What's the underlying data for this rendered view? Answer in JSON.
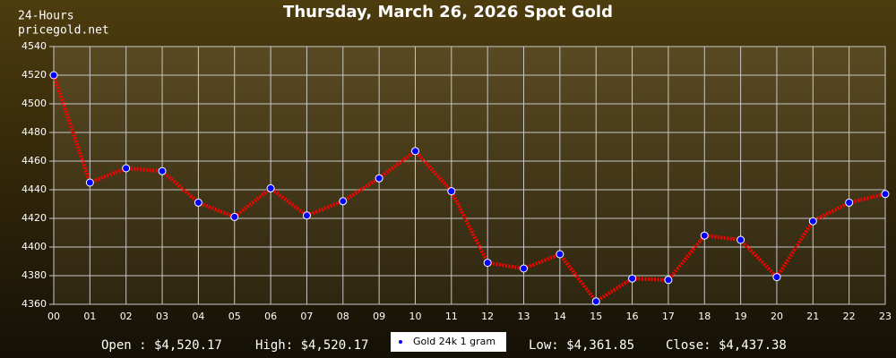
{
  "chart_data": {
    "type": "line",
    "title": "Thursday, March 26, 2026 Spot Gold",
    "period": "24-Hours",
    "source": "pricegold.net",
    "categories": [
      "00",
      "01",
      "02",
      "03",
      "04",
      "05",
      "06",
      "07",
      "08",
      "09",
      "10",
      "11",
      "12",
      "13",
      "14",
      "15",
      "16",
      "17",
      "18",
      "19",
      "20",
      "21",
      "22",
      "23"
    ],
    "series": [
      {
        "name": "Gold 24k 1 gram",
        "color": "#ff0000",
        "marker_color": "#0000ff",
        "values": [
          4520,
          4445,
          4455,
          4453,
          4431,
          4421,
          4441,
          4422,
          4432,
          4448,
          4467,
          4439,
          4389,
          4385,
          4395,
          4362,
          4378,
          4377,
          4408,
          4405,
          4379,
          4418,
          4431,
          4437
        ]
      }
    ],
    "ylim": [
      4360,
      4540
    ],
    "yticks": [
      4360,
      4380,
      4400,
      4420,
      4440,
      4460,
      4480,
      4500,
      4520,
      4540
    ],
    "grid": true,
    "stats": {
      "open": "Open : $4,520.17",
      "high": "High: $4,520.17",
      "low": "Low: $4,361.85",
      "close": "Close: $4,437.38"
    }
  }
}
